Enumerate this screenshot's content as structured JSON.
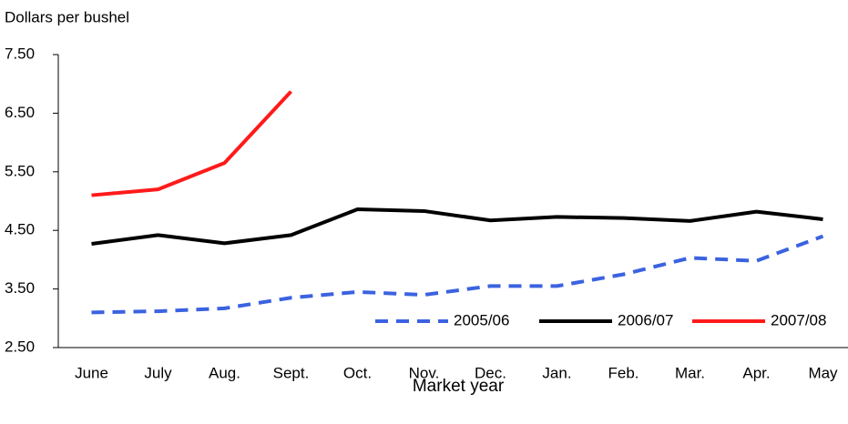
{
  "chart_data": {
    "type": "line",
    "y_label": "Dollars per bushel",
    "x_label": "Market year",
    "categories": [
      "June",
      "July",
      "Aug.",
      "Sept.",
      "Oct.",
      "Nov.",
      "Dec.",
      "Jan.",
      "Feb.",
      "Mar.",
      "Apr.",
      "May"
    ],
    "series": [
      {
        "name": "2005/06",
        "color": "#3b62e0",
        "dashed": true,
        "values": [
          3.1,
          3.12,
          3.17,
          3.35,
          3.45,
          3.4,
          3.55,
          3.55,
          3.75,
          4.03,
          3.98,
          4.4
        ]
      },
      {
        "name": "2006/07",
        "color": "#000000",
        "dashed": false,
        "values": [
          4.27,
          4.42,
          4.28,
          4.42,
          4.86,
          4.83,
          4.67,
          4.73,
          4.71,
          4.66,
          4.82,
          4.69
        ]
      },
      {
        "name": "2007/08",
        "color": "#ff1a1a",
        "dashed": false,
        "values": [
          5.1,
          5.2,
          5.65,
          6.87,
          null,
          null,
          null,
          null,
          null,
          null,
          null,
          null
        ]
      }
    ],
    "ylim": [
      2.5,
      7.5
    ],
    "yticks": [
      {
        "value": 2.5,
        "label": "2.50"
      },
      {
        "value": 3.5,
        "label": "3.50"
      },
      {
        "value": 4.5,
        "label": "4.50"
      },
      {
        "value": 5.5,
        "label": "5.50"
      },
      {
        "value": 6.5,
        "label": "6.50"
      },
      {
        "value": 7.5,
        "label": "7.50"
      }
    ],
    "legend": "lower right",
    "grid": false
  }
}
